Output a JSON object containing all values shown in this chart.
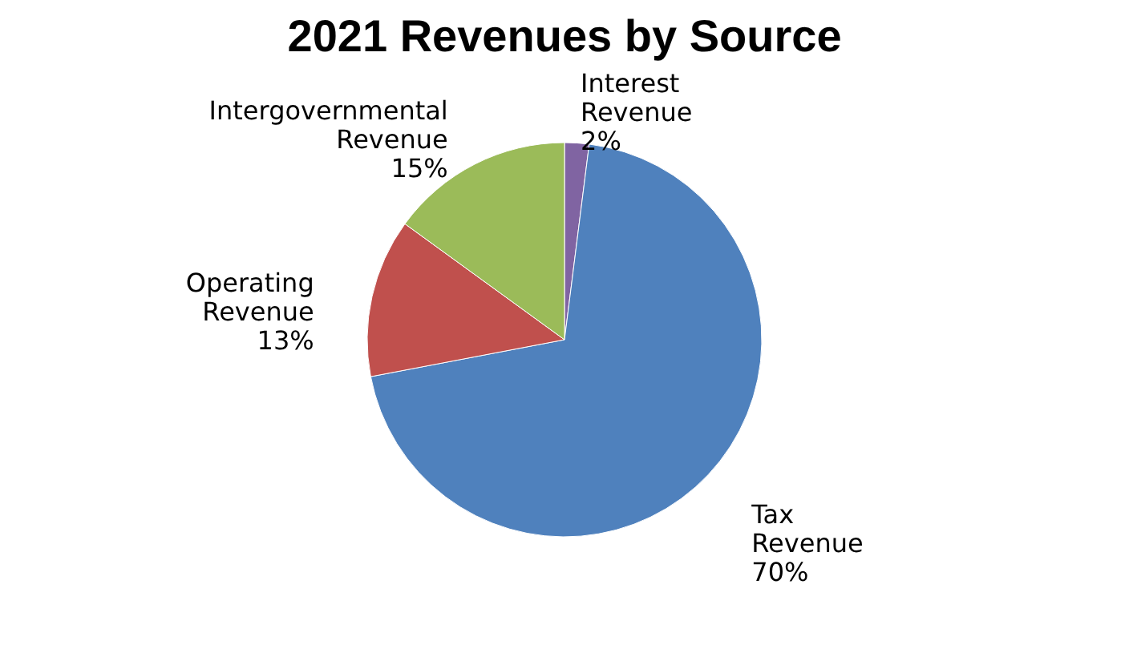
{
  "chart_data": {
    "type": "pie",
    "title": "2021 Revenues by Source",
    "categories": [
      "Interest Revenue",
      "Tax Revenue",
      "Operating Revenue",
      "Intergovernmental Revenue"
    ],
    "values": [
      2,
      70,
      13,
      15
    ],
    "value_labels": [
      "2%",
      "70%",
      "13%",
      "15%"
    ],
    "colors": [
      "#8064a2",
      "#4f81bd",
      "#c0504d",
      "#9bbb59"
    ],
    "legend": false
  }
}
